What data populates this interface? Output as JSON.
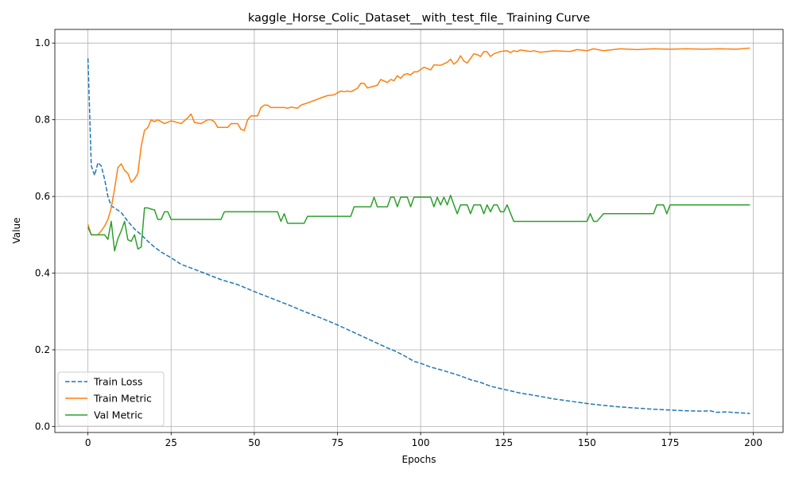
{
  "chart_data": {
    "type": "line",
    "title": "kaggle_Horse_Colic_Dataset__with_test_file_ Training Curve",
    "xlabel": "Epochs",
    "ylabel": "Value",
    "xlim": [
      -9.95,
      208.95
    ],
    "ylim": [
      -0.0156,
      1.0356
    ],
    "xticks": [
      0,
      25,
      50,
      75,
      100,
      125,
      150,
      175,
      200
    ],
    "yticks": [
      0.0,
      0.2,
      0.4,
      0.6,
      0.8,
      1.0
    ],
    "xtick_labels": [
      "0",
      "25",
      "50",
      "75",
      "100",
      "125",
      "150",
      "175",
      "200"
    ],
    "ytick_labels": [
      "0.0",
      "0.2",
      "0.4",
      "0.6",
      "0.8",
      "1.0"
    ],
    "grid": true,
    "legend_position": "lower-left",
    "series": [
      {
        "name": "Train Loss",
        "color": "#1f77b4",
        "dash": "dashed",
        "points": [
          [
            0,
            0.96
          ],
          [
            1,
            0.68
          ],
          [
            2,
            0.655
          ],
          [
            3,
            0.688
          ],
          [
            4,
            0.68
          ],
          [
            5,
            0.645
          ],
          [
            6,
            0.6
          ],
          [
            7,
            0.575
          ],
          [
            8,
            0.57
          ],
          [
            10,
            0.558
          ],
          [
            12,
            0.535
          ],
          [
            14,
            0.515
          ],
          [
            16,
            0.5
          ],
          [
            18,
            0.483
          ],
          [
            20,
            0.468
          ],
          [
            22,
            0.455
          ],
          [
            25,
            0.44
          ],
          [
            28,
            0.423
          ],
          [
            32,
            0.41
          ],
          [
            35,
            0.4
          ],
          [
            40,
            0.383
          ],
          [
            45,
            0.37
          ],
          [
            50,
            0.352
          ],
          [
            55,
            0.335
          ],
          [
            60,
            0.318
          ],
          [
            65,
            0.3
          ],
          [
            70,
            0.283
          ],
          [
            75,
            0.265
          ],
          [
            80,
            0.245
          ],
          [
            85,
            0.225
          ],
          [
            90,
            0.205
          ],
          [
            92,
            0.198
          ],
          [
            95,
            0.185
          ],
          [
            98,
            0.17
          ],
          [
            100,
            0.165
          ],
          [
            103,
            0.155
          ],
          [
            106,
            0.148
          ],
          [
            109,
            0.14
          ],
          [
            112,
            0.132
          ],
          [
            115,
            0.122
          ],
          [
            118,
            0.115
          ],
          [
            121,
            0.105
          ],
          [
            125,
            0.097
          ],
          [
            130,
            0.087
          ],
          [
            135,
            0.08
          ],
          [
            140,
            0.072
          ],
          [
            145,
            0.066
          ],
          [
            150,
            0.06
          ],
          [
            155,
            0.055
          ],
          [
            160,
            0.051
          ],
          [
            165,
            0.048
          ],
          [
            170,
            0.045
          ],
          [
            175,
            0.043
          ],
          [
            180,
            0.041
          ],
          [
            185,
            0.04
          ],
          [
            187,
            0.041
          ],
          [
            189,
            0.037
          ],
          [
            192,
            0.038
          ],
          [
            195,
            0.036
          ],
          [
            199,
            0.034
          ]
        ]
      },
      {
        "name": "Train Metric",
        "color": "#ff7f0e",
        "dash": "solid",
        "points": [
          [
            0,
            0.527
          ],
          [
            1,
            0.5
          ],
          [
            2,
            0.5
          ],
          [
            3,
            0.5
          ],
          [
            4,
            0.51
          ],
          [
            5,
            0.523
          ],
          [
            6,
            0.54
          ],
          [
            7,
            0.57
          ],
          [
            8,
            0.62
          ],
          [
            9,
            0.675
          ],
          [
            10,
            0.685
          ],
          [
            11,
            0.668
          ],
          [
            12,
            0.66
          ],
          [
            13,
            0.637
          ],
          [
            14,
            0.645
          ],
          [
            15,
            0.66
          ],
          [
            16,
            0.73
          ],
          [
            17,
            0.772
          ],
          [
            18,
            0.78
          ],
          [
            19,
            0.8
          ],
          [
            20,
            0.795
          ],
          [
            21,
            0.8
          ],
          [
            22,
            0.795
          ],
          [
            23,
            0.79
          ],
          [
            25,
            0.797
          ],
          [
            26,
            0.795
          ],
          [
            28,
            0.79
          ],
          [
            30,
            0.805
          ],
          [
            31,
            0.815
          ],
          [
            32,
            0.793
          ],
          [
            34,
            0.79
          ],
          [
            36,
            0.8
          ],
          [
            37,
            0.8
          ],
          [
            38,
            0.795
          ],
          [
            39,
            0.78
          ],
          [
            42,
            0.78
          ],
          [
            43,
            0.79
          ],
          [
            45,
            0.79
          ],
          [
            46,
            0.775
          ],
          [
            47,
            0.772
          ],
          [
            48,
            0.8
          ],
          [
            49,
            0.81
          ],
          [
            51,
            0.81
          ],
          [
            52,
            0.832
          ],
          [
            53,
            0.838
          ],
          [
            54,
            0.838
          ],
          [
            55,
            0.832
          ],
          [
            59,
            0.832
          ],
          [
            60,
            0.83
          ],
          [
            61,
            0.833
          ],
          [
            63,
            0.83
          ],
          [
            64,
            0.838
          ],
          [
            67,
            0.847
          ],
          [
            70,
            0.857
          ],
          [
            72,
            0.863
          ],
          [
            74,
            0.865
          ],
          [
            76,
            0.875
          ],
          [
            77,
            0.873
          ],
          [
            78,
            0.875
          ],
          [
            79,
            0.873
          ],
          [
            81,
            0.882
          ],
          [
            82,
            0.895
          ],
          [
            83,
            0.895
          ],
          [
            84,
            0.883
          ],
          [
            87,
            0.89
          ],
          [
            88,
            0.905
          ],
          [
            90,
            0.897
          ],
          [
            91,
            0.905
          ],
          [
            92,
            0.902
          ],
          [
            93,
            0.915
          ],
          [
            94,
            0.908
          ],
          [
            95,
            0.918
          ],
          [
            96,
            0.92
          ],
          [
            97,
            0.917
          ],
          [
            98,
            0.925
          ],
          [
            99,
            0.925
          ],
          [
            101,
            0.937
          ],
          [
            103,
            0.93
          ],
          [
            104,
            0.943
          ],
          [
            106,
            0.942
          ],
          [
            108,
            0.95
          ],
          [
            109,
            0.958
          ],
          [
            110,
            0.945
          ],
          [
            111,
            0.952
          ],
          [
            112,
            0.967
          ],
          [
            113,
            0.953
          ],
          [
            114,
            0.948
          ],
          [
            115,
            0.96
          ],
          [
            116,
            0.972
          ],
          [
            117,
            0.97
          ],
          [
            118,
            0.965
          ],
          [
            119,
            0.978
          ],
          [
            120,
            0.977
          ],
          [
            121,
            0.965
          ],
          [
            122,
            0.972
          ],
          [
            124,
            0.978
          ],
          [
            126,
            0.98
          ],
          [
            127,
            0.975
          ],
          [
            128,
            0.98
          ],
          [
            129,
            0.978
          ],
          [
            130,
            0.982
          ],
          [
            133,
            0.978
          ],
          [
            134,
            0.98
          ],
          [
            136,
            0.976
          ],
          [
            140,
            0.98
          ],
          [
            145,
            0.978
          ],
          [
            147,
            0.983
          ],
          [
            150,
            0.98
          ],
          [
            152,
            0.985
          ],
          [
            155,
            0.98
          ],
          [
            160,
            0.985
          ],
          [
            165,
            0.983
          ],
          [
            170,
            0.985
          ],
          [
            175,
            0.984
          ],
          [
            180,
            0.985
          ],
          [
            185,
            0.984
          ],
          [
            190,
            0.985
          ],
          [
            195,
            0.984
          ],
          [
            199,
            0.987
          ]
        ]
      },
      {
        "name": "Val Metric",
        "color": "#2ca02c",
        "dash": "solid",
        "points": [
          [
            0,
            0.52
          ],
          [
            1,
            0.5
          ],
          [
            2,
            0.5
          ],
          [
            3,
            0.5
          ],
          [
            4,
            0.5
          ],
          [
            5,
            0.5
          ],
          [
            6,
            0.488
          ],
          [
            7,
            0.535
          ],
          [
            8,
            0.458
          ],
          [
            9,
            0.49
          ],
          [
            10,
            0.51
          ],
          [
            11,
            0.535
          ],
          [
            12,
            0.487
          ],
          [
            13,
            0.483
          ],
          [
            14,
            0.5
          ],
          [
            15,
            0.463
          ],
          [
            16,
            0.468
          ],
          [
            17,
            0.57
          ],
          [
            18,
            0.57
          ],
          [
            19,
            0.567
          ],
          [
            20,
            0.565
          ],
          [
            21,
            0.54
          ],
          [
            22,
            0.54
          ],
          [
            23,
            0.56
          ],
          [
            24,
            0.56
          ],
          [
            25,
            0.54
          ],
          [
            30,
            0.54
          ],
          [
            35,
            0.54
          ],
          [
            40,
            0.54
          ],
          [
            41,
            0.56
          ],
          [
            45,
            0.56
          ],
          [
            50,
            0.56
          ],
          [
            55,
            0.56
          ],
          [
            57,
            0.56
          ],
          [
            58,
            0.535
          ],
          [
            59,
            0.555
          ],
          [
            60,
            0.53
          ],
          [
            65,
            0.53
          ],
          [
            66,
            0.548
          ],
          [
            70,
            0.548
          ],
          [
            75,
            0.548
          ],
          [
            79,
            0.548
          ],
          [
            80,
            0.573
          ],
          [
            85,
            0.573
          ],
          [
            86,
            0.598
          ],
          [
            87,
            0.573
          ],
          [
            90,
            0.573
          ],
          [
            91,
            0.598
          ],
          [
            92,
            0.598
          ],
          [
            93,
            0.573
          ],
          [
            94,
            0.598
          ],
          [
            96,
            0.598
          ],
          [
            97,
            0.573
          ],
          [
            98,
            0.598
          ],
          [
            100,
            0.598
          ],
          [
            103,
            0.598
          ],
          [
            104,
            0.573
          ],
          [
            105,
            0.598
          ],
          [
            106,
            0.578
          ],
          [
            107,
            0.598
          ],
          [
            108,
            0.578
          ],
          [
            109,
            0.603
          ],
          [
            110,
            0.578
          ],
          [
            111,
            0.555
          ],
          [
            112,
            0.578
          ],
          [
            114,
            0.578
          ],
          [
            115,
            0.555
          ],
          [
            116,
            0.578
          ],
          [
            118,
            0.578
          ],
          [
            119,
            0.555
          ],
          [
            120,
            0.578
          ],
          [
            121,
            0.56
          ],
          [
            122,
            0.578
          ],
          [
            123,
            0.578
          ],
          [
            124,
            0.56
          ],
          [
            125,
            0.56
          ],
          [
            126,
            0.578
          ],
          [
            128,
            0.535
          ],
          [
            130,
            0.535
          ],
          [
            140,
            0.535
          ],
          [
            149,
            0.535
          ],
          [
            150,
            0.535
          ],
          [
            151,
            0.555
          ],
          [
            152,
            0.535
          ],
          [
            153,
            0.535
          ],
          [
            155,
            0.555
          ],
          [
            160,
            0.555
          ],
          [
            165,
            0.555
          ],
          [
            170,
            0.555
          ],
          [
            171,
            0.578
          ],
          [
            173,
            0.578
          ],
          [
            174,
            0.555
          ],
          [
            175,
            0.578
          ],
          [
            180,
            0.578
          ],
          [
            185,
            0.578
          ],
          [
            190,
            0.578
          ],
          [
            195,
            0.578
          ],
          [
            199,
            0.578
          ]
        ]
      }
    ]
  }
}
